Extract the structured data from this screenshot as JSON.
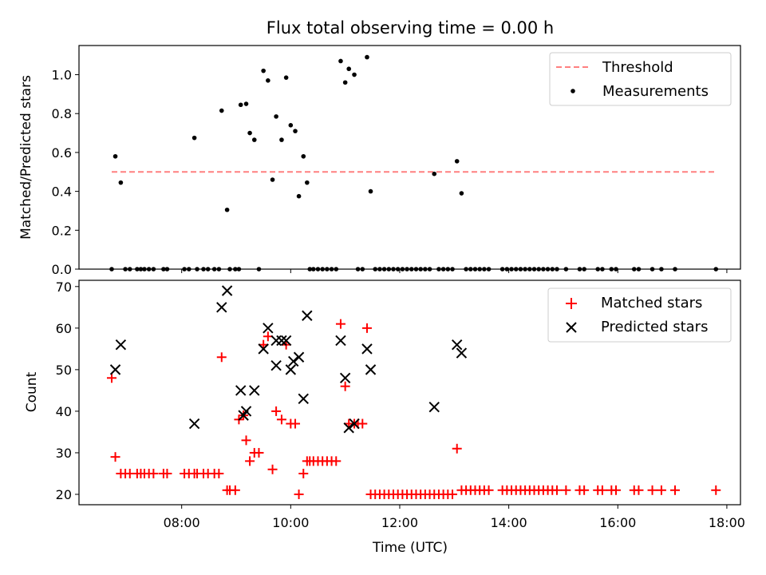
{
  "figure": {
    "title": "Flux total observing time = 0.00 h",
    "xlabel": "Time (UTC)"
  },
  "chart_data": [
    {
      "type": "scatter",
      "ylabel": "Matched/Predicted stars",
      "xlim": [
        "06:07",
        "18:15"
      ],
      "ylim": [
        0,
        1.15
      ],
      "yticks": [
        0.0,
        0.2,
        0.4,
        0.6,
        0.8,
        1.0
      ],
      "ytick_labels": [
        "0.0",
        "0.2",
        "0.4",
        "0.6",
        "0.8",
        "1.0"
      ],
      "xticks": [
        "08:00",
        "10:00",
        "12:00",
        "14:00",
        "16:00",
        "18:00"
      ],
      "legend_placement": "top-right",
      "threshold": {
        "name": "Threshold",
        "y": 0.5,
        "x_range": [
          "06:43",
          "17:48"
        ],
        "color": "#ff8080"
      },
      "series": [
        {
          "name": "Measurements",
          "color": "#000000",
          "marker": "dot",
          "points": [
            [
              "06:43",
              0.0
            ],
            [
              "06:47",
              0.58
            ],
            [
              "06:53",
              0.445
            ],
            [
              "06:58",
              0.0
            ],
            [
              "07:03",
              0.0
            ],
            [
              "07:11",
              0.0
            ],
            [
              "07:15",
              0.0
            ],
            [
              "07:19",
              0.0
            ],
            [
              "07:24",
              0.0
            ],
            [
              "07:29",
              0.0
            ],
            [
              "07:40",
              0.0
            ],
            [
              "07:44",
              0.0
            ],
            [
              "08:03",
              0.0
            ],
            [
              "08:08",
              0.0
            ],
            [
              "08:14",
              0.675
            ],
            [
              "08:17",
              0.0
            ],
            [
              "08:24",
              0.0
            ],
            [
              "08:29",
              0.0
            ],
            [
              "08:36",
              0.0
            ],
            [
              "08:41",
              0.0
            ],
            [
              "08:44",
              0.815
            ],
            [
              "08:50",
              0.305
            ],
            [
              "08:53",
              0.0
            ],
            [
              "08:59",
              0.0
            ],
            [
              "09:03",
              0.0
            ],
            [
              "09:05",
              0.845
            ],
            [
              "09:11",
              0.85
            ],
            [
              "09:15",
              0.7
            ],
            [
              "09:20",
              0.665
            ],
            [
              "09:25",
              0.0
            ],
            [
              "09:30",
              1.02
            ],
            [
              "09:35",
              0.97
            ],
            [
              "09:40",
              0.46
            ],
            [
              "09:44",
              0.785
            ],
            [
              "09:50",
              0.665
            ],
            [
              "09:55",
              0.985
            ],
            [
              "10:00",
              0.74
            ],
            [
              "10:05",
              0.71
            ],
            [
              "10:09",
              0.375
            ],
            [
              "10:14",
              0.58
            ],
            [
              "10:18",
              0.445
            ],
            [
              "10:21",
              0.0
            ],
            [
              "10:25",
              0.0
            ],
            [
              "10:30",
              0.0
            ],
            [
              "10:35",
              0.0
            ],
            [
              "10:40",
              0.0
            ],
            [
              "10:45",
              0.0
            ],
            [
              "10:50",
              0.0
            ],
            [
              "10:55",
              1.07
            ],
            [
              "11:00",
              0.96
            ],
            [
              "11:04",
              1.03
            ],
            [
              "11:10",
              1.0
            ],
            [
              "11:14",
              0.0
            ],
            [
              "11:19",
              0.0
            ],
            [
              "11:24",
              1.09
            ],
            [
              "11:28",
              0.4
            ],
            [
              "11:33",
              0.0
            ],
            [
              "11:38",
              0.0
            ],
            [
              "11:43",
              0.0
            ],
            [
              "11:48",
              0.0
            ],
            [
              "11:53",
              0.0
            ],
            [
              "11:58",
              0.0
            ],
            [
              "12:03",
              0.0
            ],
            [
              "12:08",
              0.0
            ],
            [
              "12:13",
              0.0
            ],
            [
              "12:18",
              0.0
            ],
            [
              "12:23",
              0.0
            ],
            [
              "12:28",
              0.0
            ],
            [
              "12:33",
              0.0
            ],
            [
              "12:38",
              0.49
            ],
            [
              "12:43",
              0.0
            ],
            [
              "12:48",
              0.0
            ],
            [
              "12:53",
              0.0
            ],
            [
              "12:58",
              0.0
            ],
            [
              "13:03",
              0.555
            ],
            [
              "13:08",
              0.39
            ],
            [
              "13:13",
              0.0
            ],
            [
              "13:18",
              0.0
            ],
            [
              "13:23",
              0.0
            ],
            [
              "13:28",
              0.0
            ],
            [
              "13:33",
              0.0
            ],
            [
              "13:38",
              0.0
            ],
            [
              "13:53",
              0.0
            ],
            [
              "13:58",
              0.0
            ],
            [
              "14:03",
              0.0
            ],
            [
              "14:08",
              0.0
            ],
            [
              "14:13",
              0.0
            ],
            [
              "14:18",
              0.0
            ],
            [
              "14:23",
              0.0
            ],
            [
              "14:28",
              0.0
            ],
            [
              "14:33",
              0.0
            ],
            [
              "14:38",
              0.0
            ],
            [
              "14:43",
              0.0
            ],
            [
              "14:48",
              0.0
            ],
            [
              "14:53",
              0.0
            ],
            [
              "15:03",
              0.0
            ],
            [
              "15:18",
              0.0
            ],
            [
              "15:23",
              0.0
            ],
            [
              "15:38",
              0.0
            ],
            [
              "15:43",
              0.0
            ],
            [
              "15:53",
              0.0
            ],
            [
              "15:58",
              0.0
            ],
            [
              "16:18",
              0.0
            ],
            [
              "16:23",
              0.0
            ],
            [
              "16:38",
              0.0
            ],
            [
              "16:48",
              0.0
            ],
            [
              "17:03",
              0.0
            ],
            [
              "17:48",
              0.0
            ]
          ]
        }
      ]
    },
    {
      "type": "scatter",
      "ylabel": "Count",
      "xlim": [
        "06:07",
        "18:15"
      ],
      "ylim": [
        17.5,
        71.5
      ],
      "yticks": [
        20,
        30,
        40,
        50,
        60,
        70
      ],
      "ytick_labels": [
        "20",
        "30",
        "40",
        "50",
        "60",
        "70"
      ],
      "xticks": [
        "08:00",
        "10:00",
        "12:00",
        "14:00",
        "16:00",
        "18:00"
      ],
      "xtick_labels": [
        "08:00",
        "10:00",
        "12:00",
        "14:00",
        "16:00",
        "18:00"
      ],
      "legend_placement": "top-right",
      "series": [
        {
          "name": "Matched stars",
          "color": "#ff0000",
          "marker": "plus",
          "points": [
            [
              "06:43",
              48
            ],
            [
              "06:47",
              29
            ],
            [
              "06:53",
              25
            ],
            [
              "06:58",
              25
            ],
            [
              "07:03",
              25
            ],
            [
              "07:11",
              25
            ],
            [
              "07:15",
              25
            ],
            [
              "07:19",
              25
            ],
            [
              "07:24",
              25
            ],
            [
              "07:29",
              25
            ],
            [
              "07:40",
              25
            ],
            [
              "07:44",
              25
            ],
            [
              "08:03",
              25
            ],
            [
              "08:08",
              25
            ],
            [
              "08:14",
              25
            ],
            [
              "08:17",
              25
            ],
            [
              "08:24",
              25
            ],
            [
              "08:29",
              25
            ],
            [
              "08:36",
              25
            ],
            [
              "08:41",
              25
            ],
            [
              "08:44",
              53
            ],
            [
              "08:50",
              21
            ],
            [
              "08:53",
              21
            ],
            [
              "08:59",
              21
            ],
            [
              "09:03",
              38
            ],
            [
              "09:08",
              39
            ],
            [
              "09:11",
              33
            ],
            [
              "09:15",
              28
            ],
            [
              "09:20",
              30
            ],
            [
              "09:25",
              30
            ],
            [
              "09:30",
              56
            ],
            [
              "09:35",
              58
            ],
            [
              "09:40",
              26
            ],
            [
              "09:44",
              40
            ],
            [
              "09:50",
              38
            ],
            [
              "09:55",
              56
            ],
            [
              "10:00",
              37
            ],
            [
              "10:05",
              37
            ],
            [
              "10:09",
              20
            ],
            [
              "10:14",
              25
            ],
            [
              "10:18",
              28
            ],
            [
              "10:21",
              28
            ],
            [
              "10:25",
              28
            ],
            [
              "10:30",
              28
            ],
            [
              "10:35",
              28
            ],
            [
              "10:40",
              28
            ],
            [
              "10:45",
              28
            ],
            [
              "10:50",
              28
            ],
            [
              "10:55",
              61
            ],
            [
              "11:00",
              46
            ],
            [
              "11:04",
              37
            ],
            [
              "11:10",
              37
            ],
            [
              "11:14",
              37
            ],
            [
              "11:19",
              37
            ],
            [
              "11:24",
              60
            ],
            [
              "11:28",
              20
            ],
            [
              "11:33",
              20
            ],
            [
              "11:38",
              20
            ],
            [
              "11:43",
              20
            ],
            [
              "11:48",
              20
            ],
            [
              "11:53",
              20
            ],
            [
              "11:58",
              20
            ],
            [
              "12:03",
              20
            ],
            [
              "12:08",
              20
            ],
            [
              "12:13",
              20
            ],
            [
              "12:18",
              20
            ],
            [
              "12:23",
              20
            ],
            [
              "12:28",
              20
            ],
            [
              "12:33",
              20
            ],
            [
              "12:38",
              20
            ],
            [
              "12:43",
              20
            ],
            [
              "12:48",
              20
            ],
            [
              "12:53",
              20
            ],
            [
              "12:58",
              20
            ],
            [
              "13:03",
              31
            ],
            [
              "13:08",
              21
            ],
            [
              "13:13",
              21
            ],
            [
              "13:18",
              21
            ],
            [
              "13:23",
              21
            ],
            [
              "13:28",
              21
            ],
            [
              "13:33",
              21
            ],
            [
              "13:38",
              21
            ],
            [
              "13:53",
              21
            ],
            [
              "13:58",
              21
            ],
            [
              "14:03",
              21
            ],
            [
              "14:08",
              21
            ],
            [
              "14:13",
              21
            ],
            [
              "14:18",
              21
            ],
            [
              "14:23",
              21
            ],
            [
              "14:28",
              21
            ],
            [
              "14:33",
              21
            ],
            [
              "14:38",
              21
            ],
            [
              "14:43",
              21
            ],
            [
              "14:48",
              21
            ],
            [
              "14:53",
              21
            ],
            [
              "15:03",
              21
            ],
            [
              "15:18",
              21
            ],
            [
              "15:23",
              21
            ],
            [
              "15:38",
              21
            ],
            [
              "15:43",
              21
            ],
            [
              "15:53",
              21
            ],
            [
              "15:58",
              21
            ],
            [
              "16:18",
              21
            ],
            [
              "16:23",
              21
            ],
            [
              "16:38",
              21
            ],
            [
              "16:48",
              21
            ],
            [
              "17:03",
              21
            ],
            [
              "17:48",
              21
            ]
          ]
        },
        {
          "name": "Predicted stars",
          "color": "#000000",
          "marker": "x",
          "points": [
            [
              "06:47",
              50
            ],
            [
              "06:53",
              56
            ],
            [
              "08:14",
              37
            ],
            [
              "08:44",
              65
            ],
            [
              "08:50",
              69
            ],
            [
              "09:05",
              45
            ],
            [
              "09:08",
              39
            ],
            [
              "09:11",
              40
            ],
            [
              "09:20",
              45
            ],
            [
              "09:30",
              55
            ],
            [
              "09:35",
              60
            ],
            [
              "09:44",
              51
            ],
            [
              "09:44",
              57
            ],
            [
              "09:50",
              57
            ],
            [
              "09:55",
              57
            ],
            [
              "10:00",
              50
            ],
            [
              "10:03",
              52
            ],
            [
              "10:09",
              53
            ],
            [
              "10:14",
              43
            ],
            [
              "10:18",
              63
            ],
            [
              "10:55",
              57
            ],
            [
              "11:00",
              48
            ],
            [
              "11:04",
              36
            ],
            [
              "11:10",
              37
            ],
            [
              "11:24",
              55
            ],
            [
              "11:28",
              50
            ],
            [
              "12:38",
              41
            ],
            [
              "13:03",
              56
            ],
            [
              "13:08",
              54
            ]
          ]
        }
      ]
    }
  ]
}
